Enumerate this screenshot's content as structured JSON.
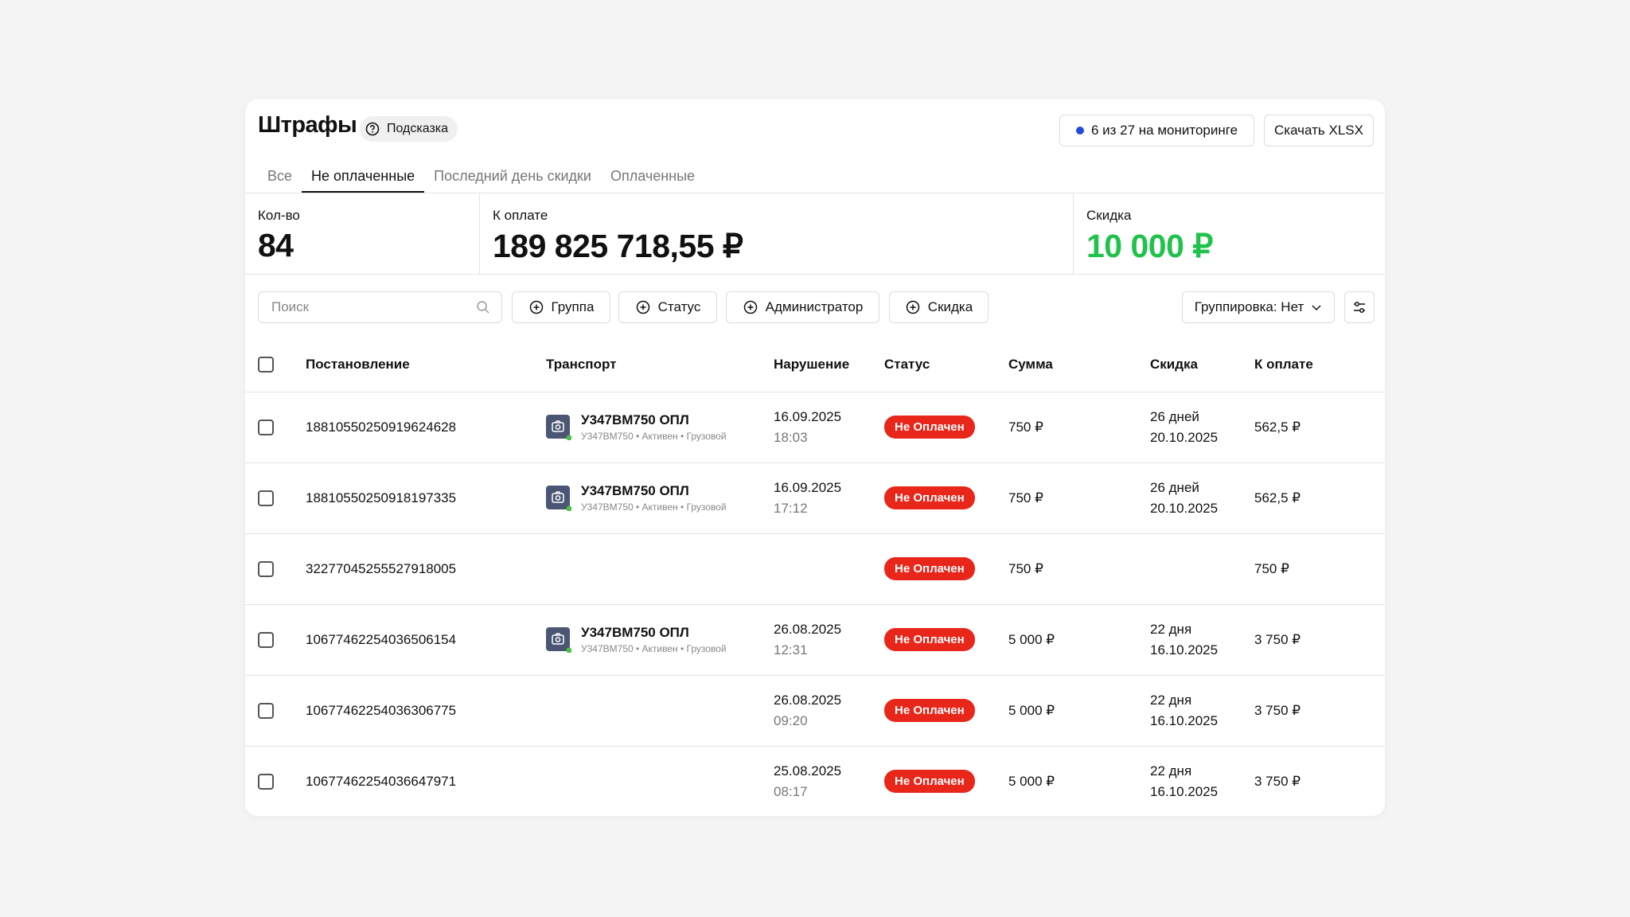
{
  "header": {
    "title": "Штрафы",
    "hint": "Подсказка",
    "monitoring": "6 из 27 на мониторинге",
    "download": "Скачать XLSX"
  },
  "tabs": [
    "Все",
    "Не оплаченные",
    "Последний день скидки",
    "Оплаченные"
  ],
  "active_tab": 1,
  "stats": [
    {
      "label": "Кол-во",
      "value": "84"
    },
    {
      "label": "К оплате",
      "value": "189 825 718,55 ₽"
    },
    {
      "label": "Скидка",
      "value": "10 000 ₽"
    }
  ],
  "filters": {
    "search_placeholder": "Поиск",
    "buttons": [
      "Группа",
      "Статус",
      "Администратор",
      "Скидка"
    ],
    "grouping": "Группировка: Нет"
  },
  "table": {
    "columns": [
      "Постановление",
      "Транспорт",
      "Нарушение",
      "Статус",
      "Сумма",
      "Скидка",
      "К оплате"
    ],
    "rows": [
      {
        "id": "18810550250919624628",
        "transport": {
          "plate": "У347ВМ750 ОПЛ",
          "sub": "У347ВМ750 • Активен • Грузовой"
        },
        "date": "16.09.2025",
        "time": "18:03",
        "status": "Не Оплачен",
        "sum": "750 ₽",
        "discount_days": "26 дней",
        "discount_date": "20.10.2025",
        "to_pay": "562,5 ₽"
      },
      {
        "id": "18810550250918197335",
        "transport": {
          "plate": "У347ВМ750 ОПЛ",
          "sub": "У347ВМ750 • Активен • Грузовой"
        },
        "date": "16.09.2025",
        "time": "17:12",
        "status": "Не Оплачен",
        "sum": "750 ₽",
        "discount_days": "26 дней",
        "discount_date": "20.10.2025",
        "to_pay": "562,5 ₽"
      },
      {
        "id": "32277045255527918005",
        "transport": null,
        "date": null,
        "time": null,
        "status": "Не Оплачен",
        "sum": "750 ₽",
        "discount_days": null,
        "discount_date": null,
        "to_pay": "750 ₽"
      },
      {
        "id": "10677462254036506154",
        "transport": {
          "plate": "У347ВМ750 ОПЛ",
          "sub": "У347ВМ750 • Активен • Грузовой"
        },
        "date": "26.08.2025",
        "time": "12:31",
        "status": "Не Оплачен",
        "sum": "5 000 ₽",
        "discount_days": "22 дня",
        "discount_date": "16.10.2025",
        "to_pay": "3 750 ₽"
      },
      {
        "id": "10677462254036306775",
        "transport": null,
        "date": "26.08.2025",
        "time": "09:20",
        "status": "Не Оплачен",
        "sum": "5 000 ₽",
        "discount_days": "22 дня",
        "discount_date": "16.10.2025",
        "to_pay": "3 750 ₽"
      },
      {
        "id": "10677462254036647971",
        "transport": null,
        "date": "25.08.2025",
        "time": "08:17",
        "status": "Не Оплачен",
        "sum": "5 000 ₽",
        "discount_days": "22 дня",
        "discount_date": "16.10.2025",
        "to_pay": "3 750 ₽"
      }
    ]
  }
}
